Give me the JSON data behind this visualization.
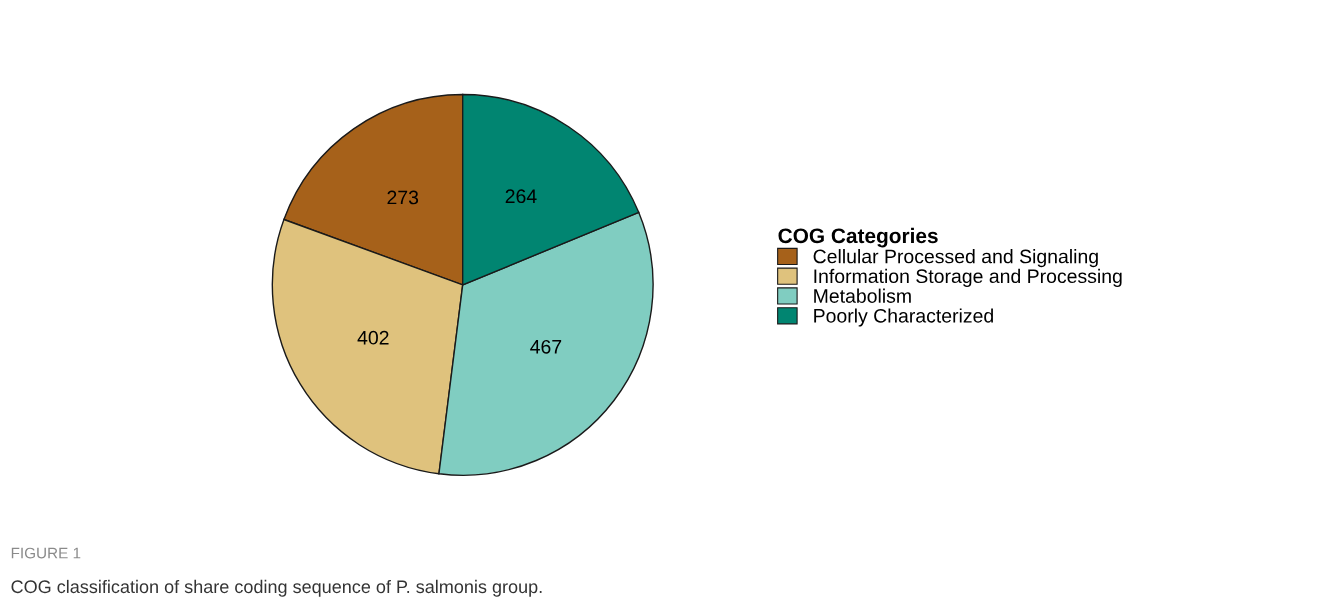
{
  "chart_data": {
    "type": "pie",
    "categories": [
      "Cellular Processed and Signaling",
      "Information Storage and Processing",
      "Metabolism",
      "Poorly Characterized"
    ],
    "values": [
      273,
      402,
      467,
      264
    ],
    "colors": [
      "#a6611a",
      "#dfc27d",
      "#80cdc1",
      "#018571"
    ],
    "data_labels": true,
    "legend": "right",
    "legend_title": "COG Categories",
    "annotations": [
      "FIGURE 1",
      "COG classification of share coding sequence of P. salmonis group."
    ]
  }
}
